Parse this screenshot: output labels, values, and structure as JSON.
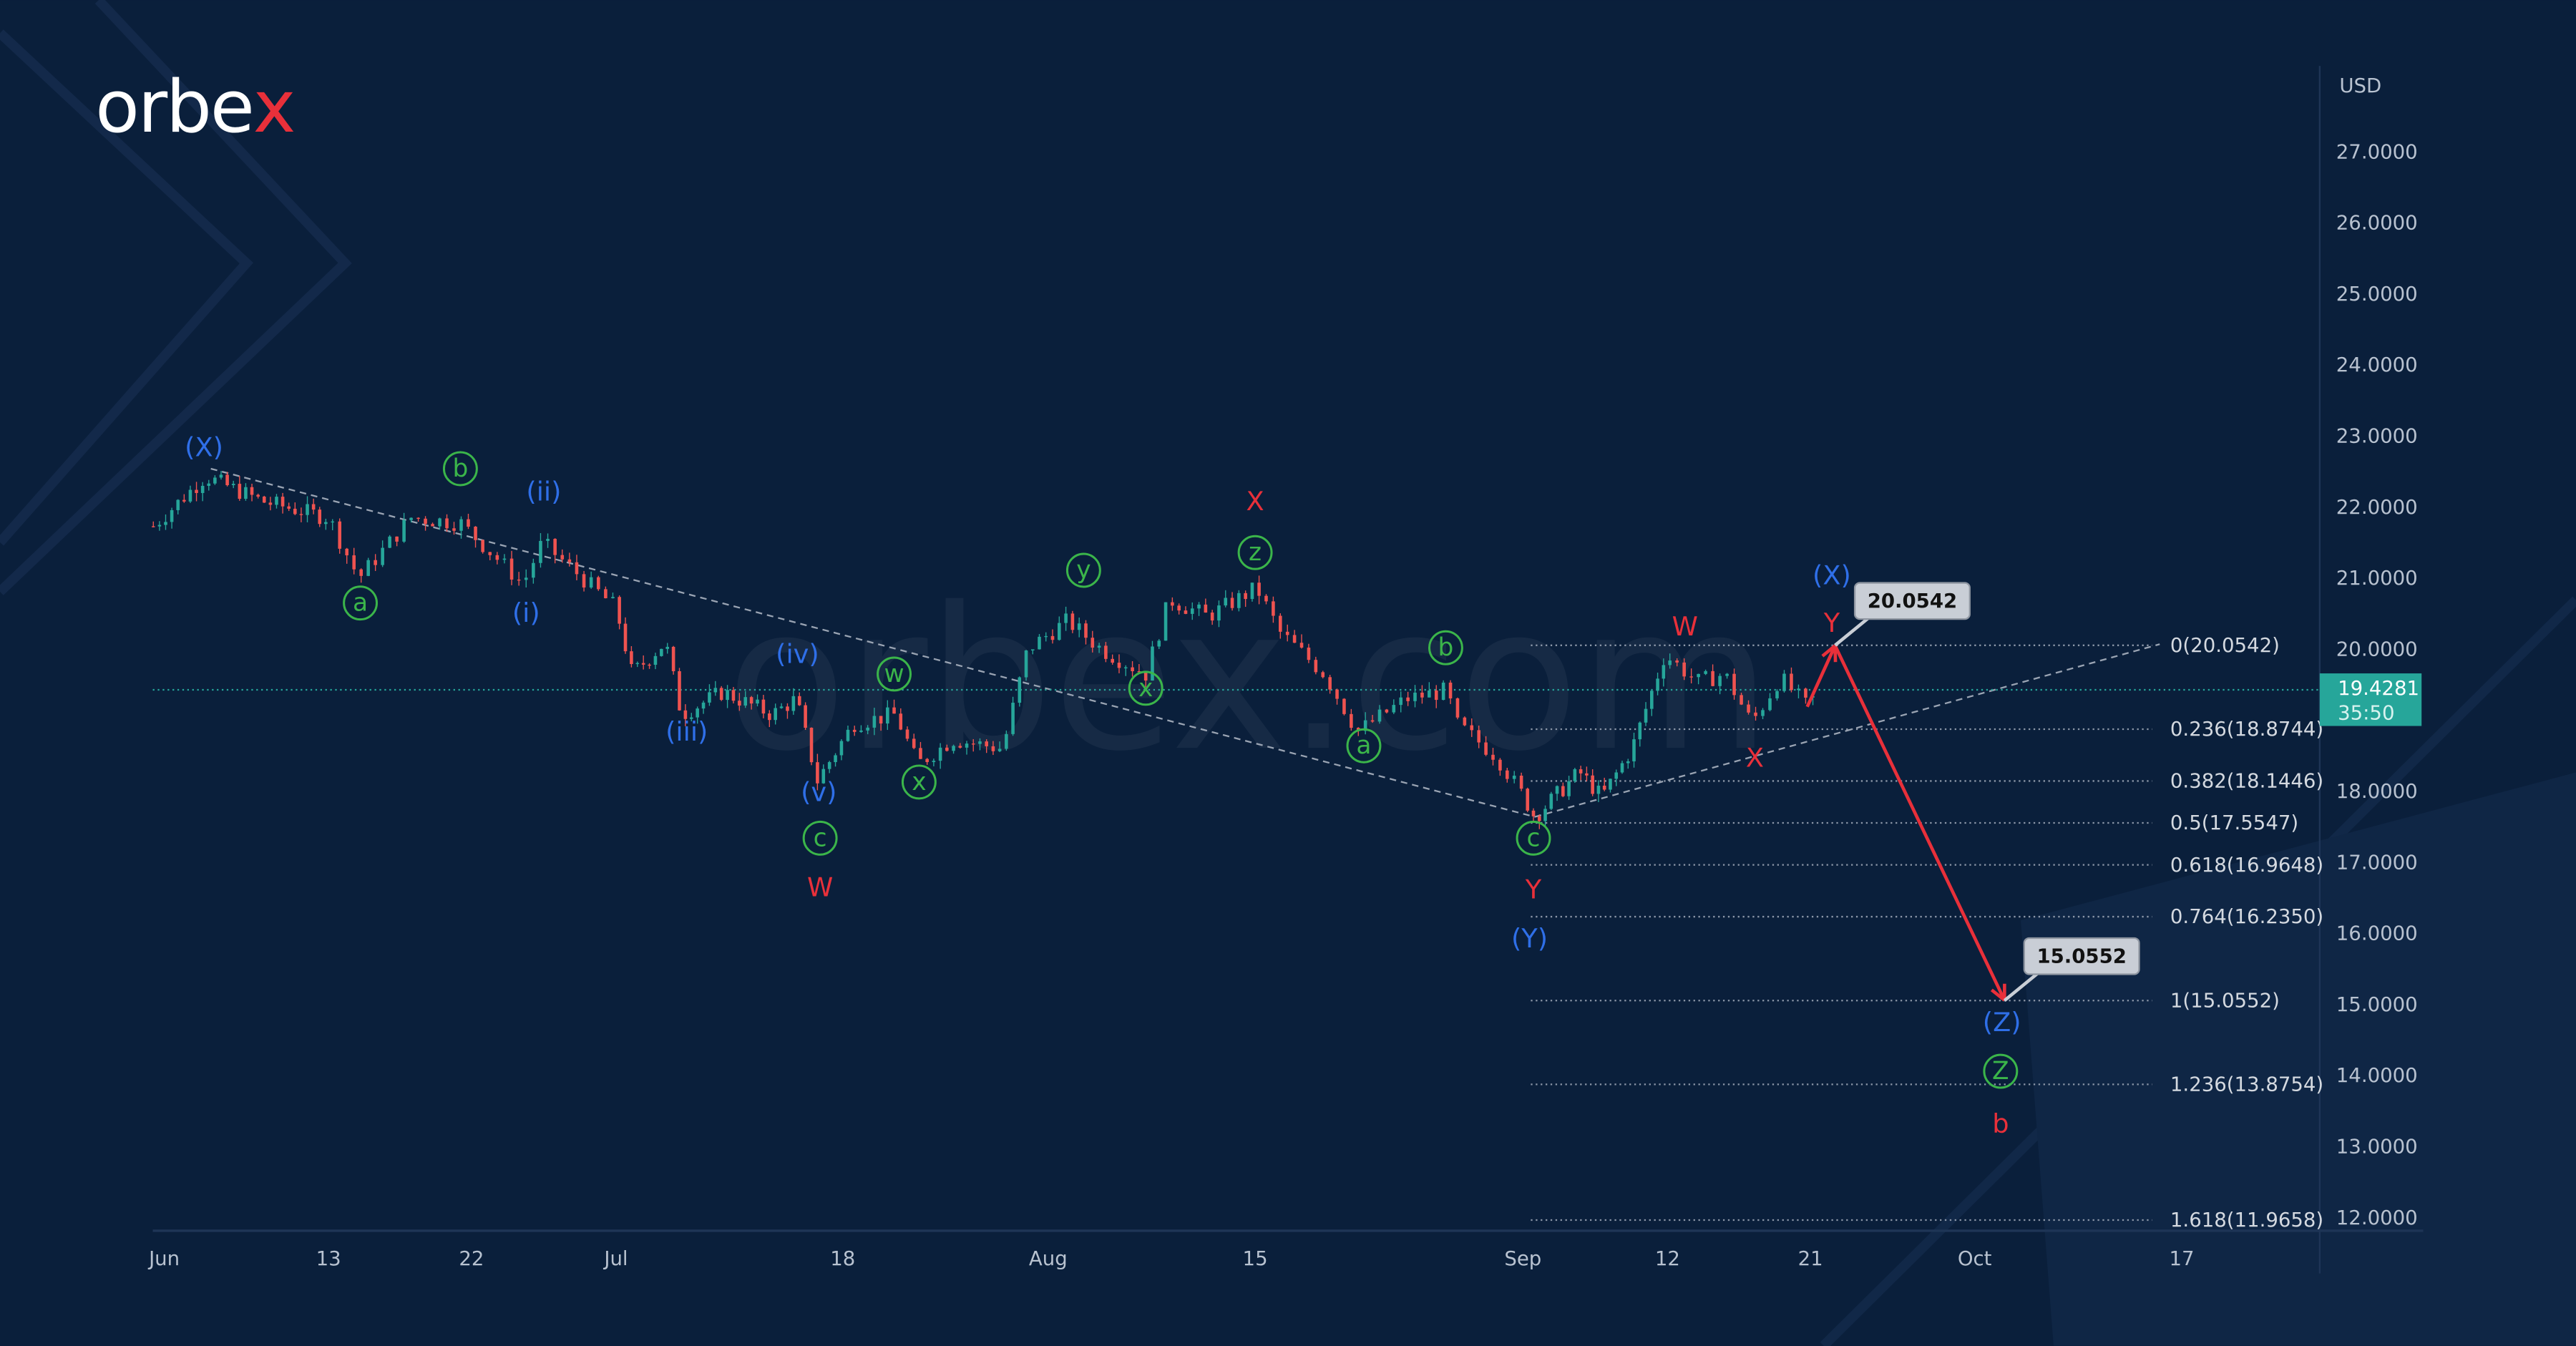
{
  "logo": {
    "text_main": "orbe",
    "text_x": "x"
  },
  "watermark": "orbex.com",
  "currency": "USD",
  "current_price": {
    "value": "19.4281",
    "countdown": "35:50",
    "price": 19.4281
  },
  "colors": {
    "bg": "#0a1f3b",
    "up": "#26a69a",
    "down": "#ef5350",
    "blue": "#2f6fe8",
    "green": "#3bb54a",
    "red": "#e8303a",
    "badge": "#26a69a"
  },
  "chart_data": {
    "type": "candlestick",
    "title": "",
    "ylabel": "USD",
    "ylim": [
      11.5,
      28
    ],
    "y_ticks": [
      "27.0000",
      "26.0000",
      "25.0000",
      "24.0000",
      "23.0000",
      "22.0000",
      "21.0000",
      "20.0000",
      "18.0000",
      "17.0000",
      "16.0000",
      "15.0000",
      "14.0000",
      "13.0000",
      "12.0000"
    ],
    "y_tick_values": [
      27,
      26,
      25,
      24,
      23,
      22,
      21,
      20,
      18,
      17,
      16,
      15,
      14,
      13,
      12
    ],
    "x_ticks": [
      "Jun",
      "13",
      "22",
      "Jul",
      "18",
      "Aug",
      "15",
      "Sep",
      "12",
      "21",
      "Oct",
      "17"
    ],
    "x_tick_days": [
      0,
      12,
      21,
      30,
      47,
      61,
      75,
      92,
      103,
      112,
      122,
      138
    ],
    "x_unit": "calendar days from Jun 1",
    "price_path": [
      [
        -0.8,
        21.73
      ],
      [
        3,
        22.43
      ],
      [
        7.2,
        22.08
      ],
      [
        12,
        21.85
      ],
      [
        13.9,
        21.0
      ],
      [
        17.2,
        21.85
      ],
      [
        20.3,
        21.78
      ],
      [
        24.2,
        20.92
      ],
      [
        25.4,
        21.5
      ],
      [
        30,
        20.58
      ],
      [
        31.2,
        19.65
      ],
      [
        33.7,
        20.1
      ],
      [
        34.9,
        19.08
      ],
      [
        38,
        19.4
      ],
      [
        41.7,
        19.08
      ],
      [
        43.5,
        19.3
      ],
      [
        45.1,
        18.15
      ],
      [
        47.8,
        18.96
      ],
      [
        50.6,
        19.08
      ],
      [
        52.1,
        18.38
      ],
      [
        54.5,
        18.73
      ],
      [
        57.9,
        18.6
      ],
      [
        59.6,
        20.0
      ],
      [
        62.3,
        20.4
      ],
      [
        64.6,
        20.0
      ],
      [
        67.6,
        19.65
      ],
      [
        69.2,
        20.7
      ],
      [
        71.8,
        20.46
      ],
      [
        75.1,
        20.86
      ],
      [
        76.6,
        20.23
      ],
      [
        79.4,
        19.65
      ],
      [
        81.5,
        18.84
      ],
      [
        84.6,
        19.3
      ],
      [
        87.2,
        19.42
      ],
      [
        87.7,
        18.96
      ],
      [
        90.3,
        18.5
      ],
      [
        92.9,
        17.64
      ],
      [
        96.3,
        18.27
      ],
      [
        98,
        17.92
      ],
      [
        100.3,
        18.6
      ],
      [
        102.8,
        19.93
      ],
      [
        104.9,
        19.54
      ],
      [
        106.6,
        19.65
      ],
      [
        108.3,
        18.96
      ],
      [
        110.1,
        19.6
      ],
      [
        111.8,
        19.19
      ],
      [
        112.6,
        19.43
      ]
    ],
    "fib_levels": [
      {
        "label": "0(20.0542)",
        "price": 20.0542
      },
      {
        "label": "0.236(18.8744)",
        "price": 18.8744
      },
      {
        "label": "0.382(18.1446)",
        "price": 18.1446
      },
      {
        "label": "0.5(17.5547)",
        "price": 17.5547
      },
      {
        "label": "0.618(16.9648)",
        "price": 16.9648
      },
      {
        "label": "0.764(16.2350)",
        "price": 16.235
      },
      {
        "label": "1(15.0552)",
        "price": 15.0552
      },
      {
        "label": "1.236(13.8754)",
        "price": 13.8754
      },
      {
        "label": "1.618(11.9658)",
        "price": 11.9658
      }
    ],
    "fib_start_day": 92.6,
    "callouts": [
      {
        "text": "20.0542",
        "day": 113.5,
        "price": 20.0542
      },
      {
        "text": "15.0552",
        "day": 124.3,
        "price": 15.0552
      }
    ],
    "projection_arrows": [
      [
        [
          111.8,
          19.19
        ],
        [
          113.5,
          20.05
        ]
      ],
      [
        [
          113.5,
          20.05
        ],
        [
          124.3,
          15.06
        ]
      ]
    ],
    "trend_lines": [
      [
        [
          3.4,
          22.54
        ],
        [
          92.9,
          17.64
        ]
      ],
      [
        [
          92.9,
          17.64
        ],
        [
          136.3,
          20.07
        ]
      ]
    ],
    "wave_labels": [
      {
        "text": "(X)",
        "color": "blue",
        "circled": false,
        "day": 2.9,
        "price": 22.84
      },
      {
        "text": "b",
        "color": "green",
        "circled": true,
        "day": 20.3,
        "price": 22.54
      },
      {
        "text": "(ii)",
        "color": "blue",
        "circled": false,
        "day": 25.5,
        "price": 22.22
      },
      {
        "text": "a",
        "color": "green",
        "circled": true,
        "day": 14,
        "price": 20.65
      },
      {
        "text": "(i)",
        "color": "blue",
        "circled": false,
        "day": 24.4,
        "price": 20.51
      },
      {
        "text": "(iv)",
        "color": "blue",
        "circled": false,
        "day": 43.6,
        "price": 19.93
      },
      {
        "text": "(iii)",
        "color": "blue",
        "circled": false,
        "day": 35.3,
        "price": 18.84
      },
      {
        "text": "w",
        "color": "green",
        "circled": true,
        "day": 50.5,
        "price": 19.65
      },
      {
        "text": "(v)",
        "color": "blue",
        "circled": false,
        "day": 45.2,
        "price": 17.99
      },
      {
        "text": "x",
        "color": "green",
        "circled": true,
        "day": 52.2,
        "price": 18.13
      },
      {
        "text": "c",
        "color": "green",
        "circled": true,
        "day": 45.3,
        "price": 17.34
      },
      {
        "text": "W",
        "color": "red",
        "circled": false,
        "day": 45.3,
        "price": 16.65
      },
      {
        "text": "y",
        "color": "green",
        "circled": true,
        "day": 63.4,
        "price": 21.11
      },
      {
        "text": "x",
        "color": "green",
        "circled": true,
        "day": 67.6,
        "price": 19.45
      },
      {
        "text": "X",
        "color": "red",
        "circled": false,
        "day": 75,
        "price": 22.08
      },
      {
        "text": "z",
        "color": "green",
        "circled": true,
        "day": 75,
        "price": 21.36
      },
      {
        "text": "b",
        "color": "green",
        "circled": true,
        "day": 87.1,
        "price": 20.02
      },
      {
        "text": "a",
        "color": "green",
        "circled": true,
        "day": 81.9,
        "price": 18.64
      },
      {
        "text": "c",
        "color": "green",
        "circled": true,
        "day": 92.8,
        "price": 17.34
      },
      {
        "text": "Y",
        "color": "red",
        "circled": false,
        "day": 92.8,
        "price": 16.62
      },
      {
        "text": "(Y)",
        "color": "blue",
        "circled": false,
        "day": 92.5,
        "price": 15.93
      },
      {
        "text": "W",
        "color": "red",
        "circled": false,
        "day": 104.1,
        "price": 20.32
      },
      {
        "text": "(X)",
        "color": "blue",
        "circled": false,
        "day": 113.3,
        "price": 21.04
      },
      {
        "text": "Y",
        "color": "red",
        "circled": false,
        "day": 113.3,
        "price": 20.37
      },
      {
        "text": "X",
        "color": "red",
        "circled": false,
        "day": 108.5,
        "price": 18.47
      },
      {
        "text": "(Z)",
        "color": "blue",
        "circled": false,
        "day": 124.1,
        "price": 14.75
      },
      {
        "text": "Z",
        "color": "green",
        "circled": true,
        "day": 124,
        "price": 14.06
      },
      {
        "text": "b",
        "color": "red",
        "circled": false,
        "day": 124,
        "price": 13.32
      }
    ]
  }
}
